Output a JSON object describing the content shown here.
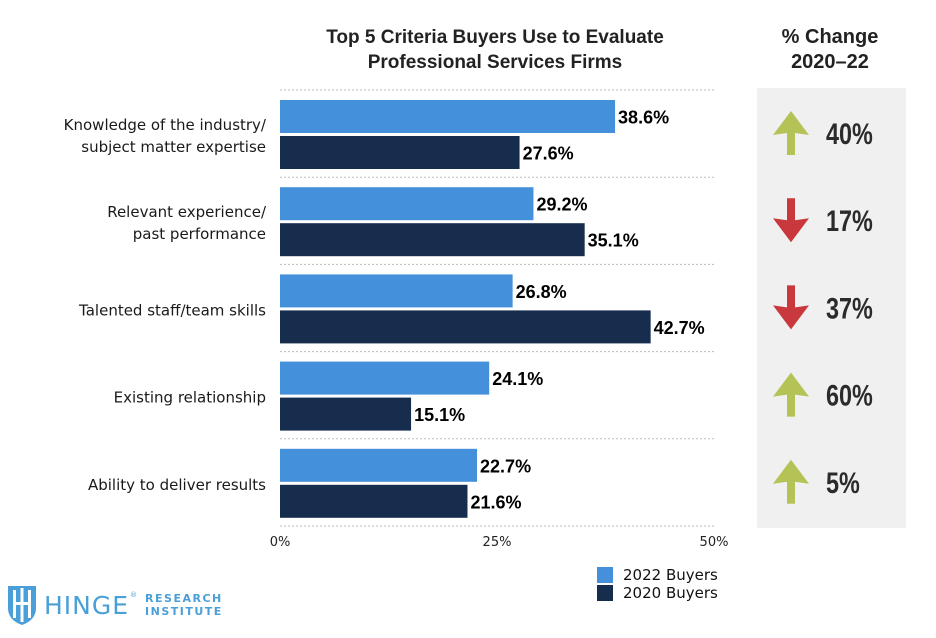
{
  "chart_data": {
    "type": "bar",
    "orientation": "horizontal",
    "title": "Top 5 Criteria Buyers Use to Evaluate Professional Services Firms",
    "title_lines": [
      "Top 5 Criteria Buyers Use to Evaluate",
      "Professional Services Firms"
    ],
    "categories": [
      [
        "Knowledge of the industry/",
        "subject matter expertise"
      ],
      [
        "Relevant experience/",
        "past performance"
      ],
      [
        "Talented staff/team skills"
      ],
      [
        "Existing relationship"
      ],
      [
        "Ability to deliver results"
      ]
    ],
    "series": [
      {
        "name": "2022 Buyers",
        "color": "#4590db",
        "values": [
          38.6,
          29.2,
          26.8,
          24.1,
          22.7
        ],
        "labels": [
          "38.6%",
          "29.2%",
          "26.8%",
          "24.1%",
          "22.7%"
        ]
      },
      {
        "name": "2020 Buyers",
        "color": "#172d4d",
        "values": [
          27.6,
          35.1,
          42.7,
          15.1,
          21.6
        ],
        "labels": [
          "27.6%",
          "35.1%",
          "42.7%",
          "15.1%",
          "21.6%"
        ]
      }
    ],
    "xlim": [
      0,
      50
    ],
    "xticks": [
      0,
      25,
      50
    ],
    "xtick_labels": [
      "0%",
      "25%",
      "50%"
    ],
    "xlabel": "",
    "ylabel": "",
    "grid": "dotted horizontal separators",
    "legend": {
      "position": "bottom-right",
      "entries": [
        "2022 Buyers",
        "2020 Buyers"
      ]
    },
    "change_panel": {
      "title_lines": [
        "% Change",
        "2020–22"
      ],
      "items": [
        {
          "direction": "up",
          "value": "40%"
        },
        {
          "direction": "down",
          "value": "17%"
        },
        {
          "direction": "down",
          "value": "37%"
        },
        {
          "direction": "up",
          "value": "60%"
        },
        {
          "direction": "up",
          "value": "5%"
        }
      ],
      "colors": {
        "up": "#b5c255",
        "down": "#c9383c"
      }
    }
  },
  "logo": {
    "word": "HINGE",
    "registered": "®",
    "sub_line1": "RESEARCH",
    "sub_line2": "INSTITUTE",
    "color": "#4a9fd8"
  }
}
